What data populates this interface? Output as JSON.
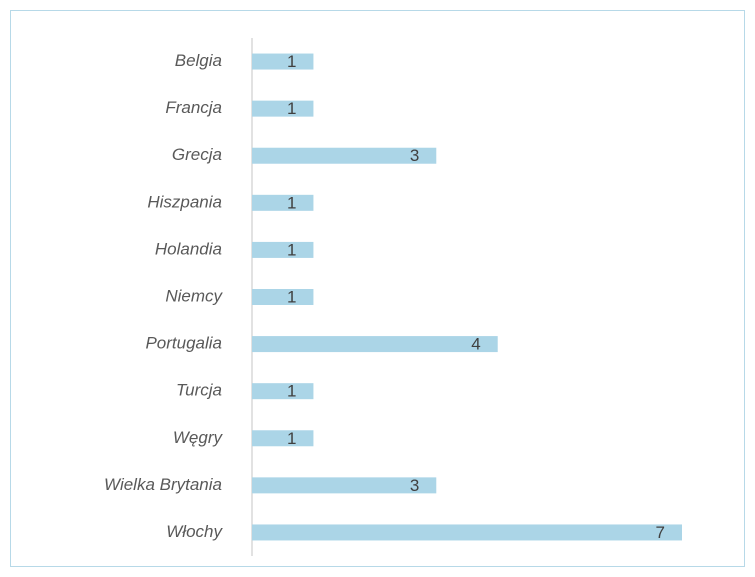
{
  "chart_data": {
    "type": "bar",
    "orientation": "horizontal",
    "categories": [
      "Belgia",
      "Francja",
      "Grecja",
      "Hiszpania",
      "Holandia",
      "Niemcy",
      "Portugalia",
      "Turcja",
      "Węgry",
      "Wielka Brytania",
      "Włochy"
    ],
    "values": [
      1,
      1,
      3,
      1,
      1,
      1,
      4,
      1,
      1,
      3,
      7
    ],
    "color": "#abd5e7"
  }
}
